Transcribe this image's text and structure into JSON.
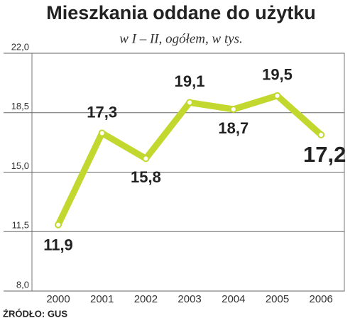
{
  "chart_data": {
    "type": "line",
    "title": "Mieszkania oddane do użytku",
    "subtitle": "w I – II, ogółem, w tys.",
    "source": "ŹRÓDŁO: GUS",
    "categories": [
      "2000",
      "2001",
      "2002",
      "2003",
      "2004",
      "2005",
      "2006"
    ],
    "series": [
      {
        "name": "Mieszkania",
        "color": "#c2d82e",
        "values": [
          11.9,
          17.3,
          15.8,
          19.1,
          18.7,
          19.5,
          17.2
        ],
        "value_labels": [
          "11,9",
          "17,3",
          "15,8",
          "19,1",
          "18,7",
          "19,5",
          "17,2"
        ]
      }
    ],
    "ylim": [
      8,
      22
    ],
    "yticks": [
      {
        "value": 8,
        "label": "8,0"
      },
      {
        "value": 11.5,
        "label": "11,5"
      },
      {
        "value": 15,
        "label": "15,0"
      },
      {
        "value": 18.5,
        "label": "18,5"
      },
      {
        "value": 22,
        "label": "22,0"
      }
    ],
    "grid": true
  }
}
